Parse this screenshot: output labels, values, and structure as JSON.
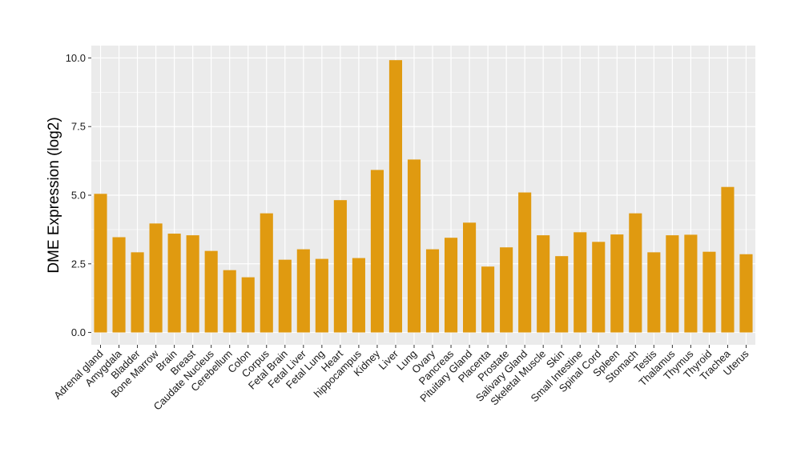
{
  "chart_data": {
    "type": "bar",
    "title": "",
    "xlabel": "",
    "ylabel": "DME Expression (log2)",
    "ylim": [
      -0.45,
      10.45
    ],
    "yticks": [
      0.0,
      2.5,
      5.0,
      7.5,
      10.0
    ],
    "ytick_labels": [
      "0.0",
      "2.5",
      "5.0",
      "7.5",
      "10.0"
    ],
    "grid": true,
    "bar_color": "#E09A10",
    "panel_color": "#EBEBEB",
    "gridline_color": "#FFFFFF",
    "categories": [
      "Adrenal gland",
      "Amygdala",
      "Bladder",
      "Bone Marrow",
      "Brain",
      "Breast",
      "Caudate Nucleus",
      "Cerebellum",
      "Colon",
      "Corpus",
      "Fetal Brain",
      "Fetal Liver",
      "Fetal Lung",
      "Heart",
      "hippocampus",
      "Kidney",
      "Liver",
      "Lung",
      "Ovary",
      "Pancreas",
      "Pituitary Gland",
      "Placenta",
      "Prostate",
      "Salivary Gland",
      "Skeletal Muscle",
      "Skin",
      "Small Intestine",
      "Spinal Cord",
      "Spleen",
      "Stomach",
      "Testis",
      "Thalamus",
      "Thymus",
      "Thyroid",
      "Trachea",
      "Uterus"
    ],
    "values": [
      5.05,
      3.47,
      2.92,
      3.97,
      3.6,
      3.54,
      2.97,
      2.27,
      2.01,
      4.34,
      2.65,
      3.03,
      2.68,
      4.82,
      2.71,
      5.92,
      9.92,
      6.3,
      3.03,
      3.45,
      4.0,
      2.4,
      3.1,
      5.1,
      3.54,
      2.78,
      3.65,
      3.3,
      3.57,
      4.34,
      2.92,
      3.54,
      3.56,
      2.94,
      5.3,
      2.85
    ]
  }
}
